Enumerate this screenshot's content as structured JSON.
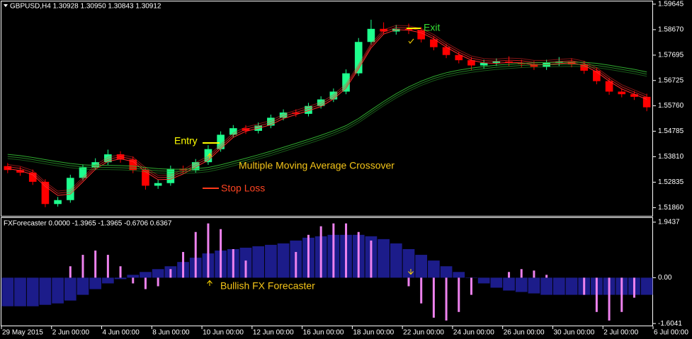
{
  "chart_data": [
    {
      "type": "candlestick",
      "title": "GBPUSD,H4  1.30928 1.30950 1.30843 1.30912",
      "up_color": "#1eff8e",
      "down_color": "#ff0000",
      "open": [
        1.5345,
        1.533,
        1.532,
        1.5285,
        1.52,
        1.5215,
        1.53,
        1.534,
        1.536,
        1.539,
        1.537,
        1.533,
        1.527,
        1.528,
        1.5335,
        1.533,
        1.536,
        1.541,
        1.5465,
        1.549,
        1.548,
        1.55,
        1.553,
        1.555,
        1.5545,
        1.5575,
        1.56,
        1.563,
        1.57,
        1.582,
        1.587,
        1.586,
        1.587,
        1.5865,
        1.583,
        1.58,
        1.577,
        1.575,
        1.573,
        1.574,
        1.5745,
        1.574,
        1.5735,
        1.5725,
        1.574,
        1.5745,
        1.5735,
        1.571,
        1.567,
        1.563,
        1.562,
        1.561
      ],
      "high": [
        1.5357,
        1.5342,
        1.5332,
        1.5295,
        1.5227,
        1.5312,
        1.5352,
        1.5375,
        1.5408,
        1.5402,
        1.5382,
        1.5342,
        1.5292,
        1.5347,
        1.5347,
        1.5372,
        1.5425,
        1.5478,
        1.5502,
        1.5502,
        1.5512,
        1.5542,
        1.5562,
        1.5562,
        1.5587,
        1.5612,
        1.5642,
        1.5715,
        1.5835,
        1.5905,
        1.5895,
        1.5885,
        1.589,
        1.5877,
        1.5842,
        1.5812,
        1.5782,
        1.5762,
        1.5752,
        1.5757,
        1.5765,
        1.5752,
        1.5747,
        1.5752,
        1.5762,
        1.5757,
        1.5747,
        1.5722,
        1.5682,
        1.5642,
        1.5632,
        1.5622
      ],
      "low": [
        1.5318,
        1.5308,
        1.5273,
        1.5188,
        1.519,
        1.5205,
        1.529,
        1.533,
        1.535,
        1.5358,
        1.5318,
        1.5255,
        1.5258,
        1.527,
        1.5318,
        1.532,
        1.535,
        1.54,
        1.5455,
        1.5468,
        1.547,
        1.549,
        1.552,
        1.5533,
        1.5535,
        1.5565,
        1.559,
        1.562,
        1.569,
        1.581,
        1.5848,
        1.5848,
        1.585,
        1.5818,
        1.5788,
        1.5758,
        1.5738,
        1.5712,
        1.5718,
        1.5728,
        1.5728,
        1.5723,
        1.5713,
        1.5713,
        1.5728,
        1.5723,
        1.5698,
        1.5658,
        1.5618,
        1.5608,
        1.5598,
        1.5555
      ],
      "close": [
        1.533,
        1.532,
        1.5285,
        1.52,
        1.5215,
        1.53,
        1.534,
        1.536,
        1.539,
        1.537,
        1.533,
        1.527,
        1.528,
        1.5335,
        1.533,
        1.536,
        1.541,
        1.5465,
        1.549,
        1.548,
        1.55,
        1.553,
        1.555,
        1.5545,
        1.5575,
        1.56,
        1.563,
        1.57,
        1.582,
        1.587,
        1.586,
        1.587,
        1.5865,
        1.583,
        1.58,
        1.577,
        1.575,
        1.573,
        1.574,
        1.5745,
        1.574,
        1.5735,
        1.5725,
        1.574,
        1.5745,
        1.5735,
        1.571,
        1.567,
        1.563,
        1.562,
        1.561,
        1.557
      ],
      "series": [
        {
          "color": "#ff2a2a",
          "values": [
            1.5335,
            1.5328,
            1.5312,
            1.5268,
            1.5233,
            1.5238,
            1.5285,
            1.5333,
            1.5363,
            1.5373,
            1.5363,
            1.5323,
            1.5293,
            1.5295,
            1.5315,
            1.5342,
            1.5367,
            1.5412,
            1.5455,
            1.5478,
            1.549,
            1.5503,
            1.5527,
            1.5542,
            1.5557,
            1.5573,
            1.5602,
            1.5643,
            1.5717,
            1.5797,
            1.585,
            1.5867,
            1.5865,
            1.5855,
            1.5832,
            1.58,
            1.5773,
            1.575,
            1.574,
            1.5738,
            1.5742,
            1.574,
            1.5733,
            1.5733,
            1.5737,
            1.574,
            1.573,
            1.5705,
            1.567,
            1.564,
            1.562,
            1.56
          ]
        },
        {
          "color": "#2fa82f",
          "values": [
            1.539,
            1.5385,
            1.5378,
            1.537,
            1.5362,
            1.5355,
            1.535,
            1.5348,
            1.5348,
            1.5347,
            1.5345,
            1.534,
            1.5335,
            1.5333,
            1.5333,
            1.5335,
            1.534,
            1.535,
            1.5362,
            1.5375,
            1.5388,
            1.5402,
            1.5417,
            1.5432,
            1.5447,
            1.5463,
            1.548,
            1.55,
            1.5527,
            1.556,
            1.5592,
            1.5622,
            1.5648,
            1.567,
            1.5688,
            1.5702,
            1.5712,
            1.572,
            1.5726,
            1.5731,
            1.5735,
            1.5738,
            1.574,
            1.5741,
            1.5742,
            1.5743,
            1.5742,
            1.5738,
            1.5731,
            1.5723,
            1.5715,
            1.5705
          ]
        }
      ],
      "ylim": [
        1.5152,
        1.5975
      ],
      "yticks": [
        1.59645,
        {
          "value": 1.5867,
          "label": "1.58670"
        },
        1.57695,
        1.56725,
        {
          "value": 1.5576,
          "label": "1.55760"
        },
        1.54785,
        {
          "value": 1.5381,
          "label": "1.53810"
        },
        1.52835,
        {
          "value": 1.5186,
          "label": "1.51860"
        }
      ],
      "annotations": [
        "Entry",
        "Exit",
        "Stop Loss",
        "Multiple Moving Average Crossover"
      ]
    },
    {
      "type": "histogram",
      "title": "FXForecaster 0.0000 -1.3965 -1.3965 -0.6706 0.6367",
      "series": [
        {
          "color": "#1c1c8a",
          "values": [
            -1.0,
            -1.0,
            -1.0,
            -0.95,
            -0.9,
            -0.8,
            -0.6,
            -0.4,
            -0.2,
            -0.05,
            0.1,
            0.2,
            0.3,
            0.4,
            0.55,
            0.7,
            0.85,
            0.95,
            1.0,
            1.05,
            1.1,
            1.15,
            1.2,
            1.3,
            1.4,
            1.45,
            1.5,
            1.5,
            1.5,
            1.45,
            1.35,
            1.2,
            1.0,
            0.8,
            0.6,
            0.4,
            0.2,
            0.0,
            -0.2,
            -0.35,
            -0.45,
            -0.5,
            -0.55,
            -0.6,
            -0.6,
            -0.6,
            -0.6,
            -0.6,
            -0.6,
            -0.6,
            -0.6,
            -0.6
          ]
        },
        {
          "color": "#ee82ee",
          "values": [
            null,
            null,
            null,
            null,
            null,
            0.4,
            0.8,
            0.95,
            0.8,
            0.4,
            -0.2,
            -0.4,
            -0.3,
            0.3,
            0.9,
            1.6,
            1.9,
            1.7,
            1.0,
            0.6,
            null,
            null,
            null,
            0.9,
            1.5,
            1.8,
            1.9,
            1.9,
            1.6,
            1.3,
            null,
            null,
            -0.3,
            -0.9,
            -1.4,
            -1.5,
            -1.2,
            -0.6,
            null,
            null,
            0.2,
            0.3,
            0.25,
            0.1,
            null,
            null,
            -0.6,
            -1.2,
            -1.5,
            -1.2,
            -0.7,
            null
          ]
        }
      ],
      "ylim": [
        -1.7,
        2.09
      ],
      "yticks": [
        1.9437,
        {
          "value": 0,
          "label": "0.00"
        },
        -1.6041
      ],
      "xlim": [
        0,
        52
      ],
      "xticks": [
        {
          "value": 0,
          "label": "29 May 2015"
        },
        {
          "value": 4,
          "label": "2 Jun 00:00"
        },
        {
          "value": 8,
          "label": "4 Jun 00:00"
        },
        {
          "value": 12,
          "label": "8 Jun 00:00"
        },
        {
          "value": 16,
          "label": "10 Jun 00:00"
        },
        {
          "value": 20,
          "label": "12 Jun 00:00"
        },
        {
          "value": 24,
          "label": "16 Jun 00:00"
        },
        {
          "value": 28,
          "label": "18 Jun 00:00"
        },
        {
          "value": 32,
          "label": "22 Jun 00:00"
        },
        {
          "value": 36,
          "label": "24 Jun 00:00"
        },
        {
          "value": 40,
          "label": "26 Jun 00:00"
        },
        {
          "value": 44,
          "label": "30 Jun 00:00"
        },
        {
          "value": 48,
          "label": "2 Jul 00:00"
        },
        {
          "value": 52,
          "label": "6 Jul 00:00"
        }
      ],
      "annotations": [
        "Bullish FX Forecaster"
      ]
    }
  ]
}
